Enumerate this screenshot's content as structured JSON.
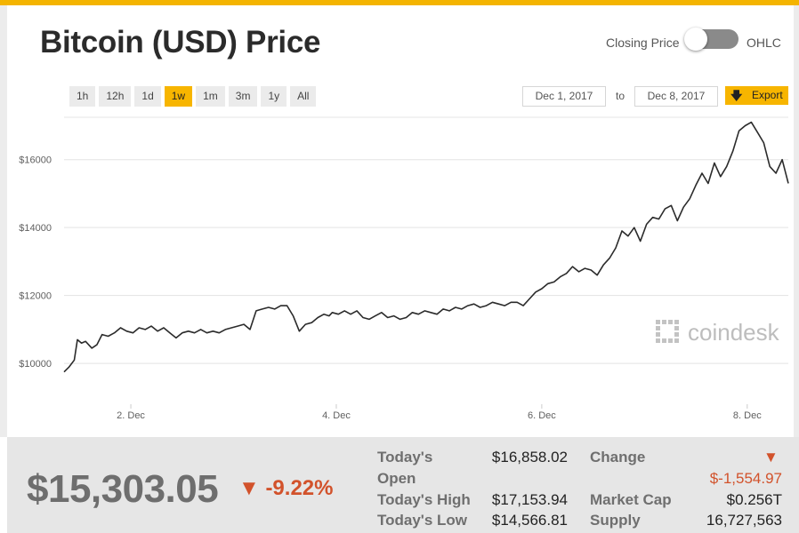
{
  "title": "Bitcoin (USD) Price",
  "toggle": {
    "left_label": "Closing Price",
    "right_label": "OHLC"
  },
  "ranges": [
    {
      "label": "1h",
      "active": false
    },
    {
      "label": "12h",
      "active": false
    },
    {
      "label": "1d",
      "active": false
    },
    {
      "label": "1w",
      "active": true
    },
    {
      "label": "1m",
      "active": false
    },
    {
      "label": "3m",
      "active": false
    },
    {
      "label": "1y",
      "active": false
    },
    {
      "label": "All",
      "active": false
    }
  ],
  "date_range": {
    "from": "Dec 1, 2017",
    "to_label": "to",
    "to": "Dec 8, 2017"
  },
  "export_label": "Export",
  "watermark": "coindesk",
  "colors": {
    "accent": "#f7b500",
    "negative": "#d2522b",
    "line": "#2b2b2b"
  },
  "chart_data": {
    "type": "line",
    "title": "Bitcoin (USD) Price",
    "xlabel": "",
    "ylabel": "",
    "x_ticks": [
      {
        "label": "2. Dec",
        "day": 2
      },
      {
        "label": "4. Dec",
        "day": 4
      },
      {
        "label": "6. Dec",
        "day": 6
      },
      {
        "label": "8. Dec",
        "day": 8
      }
    ],
    "y_ticks": [
      {
        "label": "$10000",
        "value": 10000
      },
      {
        "label": "$12000",
        "value": 12000
      },
      {
        "label": "$14000",
        "value": 14000
      },
      {
        "label": "$16000",
        "value": 16000
      }
    ],
    "xlim": [
      1.35,
      8.4
    ],
    "ylim": [
      8800,
      17300
    ],
    "grid": true,
    "series": [
      {
        "x": [
          1.35,
          1.4,
          1.45,
          1.48,
          1.52,
          1.56,
          1.62,
          1.67,
          1.72,
          1.78,
          1.84,
          1.9,
          1.96,
          2.02,
          2.08,
          2.14,
          2.2,
          2.26,
          2.32,
          2.38,
          2.44,
          2.5,
          2.56,
          2.62,
          2.68,
          2.74,
          2.8,
          2.86,
          2.92,
          2.98,
          3.04,
          3.1,
          3.16,
          3.22,
          3.28,
          3.34,
          3.4,
          3.46,
          3.52,
          3.58,
          3.64,
          3.7,
          3.76,
          3.82,
          3.88,
          3.93,
          3.96,
          4.02,
          4.08,
          4.14,
          4.2,
          4.26,
          4.32,
          4.38,
          4.44,
          4.5,
          4.56,
          4.62,
          4.68,
          4.74,
          4.8,
          4.86,
          4.92,
          4.98,
          5.04,
          5.1,
          5.16,
          5.22,
          5.28,
          5.34,
          5.4,
          5.46,
          5.52,
          5.58,
          5.64,
          5.7,
          5.76,
          5.82,
          5.88,
          5.94,
          6.0,
          6.06,
          6.12,
          6.18,
          6.24,
          6.3,
          6.36,
          6.42,
          6.48,
          6.54,
          6.6,
          6.66,
          6.72,
          6.78,
          6.84,
          6.9,
          6.96,
          7.02,
          7.08,
          7.14,
          7.2,
          7.26,
          7.32,
          7.38,
          7.44,
          7.5,
          7.56,
          7.62,
          7.68,
          7.74,
          7.8,
          7.86,
          7.92,
          7.98,
          8.04,
          8.1,
          8.16,
          8.22,
          8.28,
          8.34,
          8.4
        ],
        "values": [
          9750,
          9900,
          10100,
          10700,
          10600,
          10650,
          10450,
          10550,
          10850,
          10800,
          10900,
          11050,
          10950,
          10900,
          11050,
          11000,
          11100,
          10950,
          11050,
          10900,
          10750,
          10900,
          10950,
          10900,
          11000,
          10900,
          10950,
          10900,
          11000,
          11050,
          11100,
          11150,
          11000,
          11550,
          11600,
          11650,
          11600,
          11700,
          11700,
          11400,
          10950,
          11150,
          11200,
          11350,
          11450,
          11400,
          11500,
          11450,
          11550,
          11450,
          11550,
          11350,
          11300,
          11400,
          11500,
          11350,
          11400,
          11300,
          11350,
          11500,
          11450,
          11550,
          11500,
          11450,
          11600,
          11550,
          11650,
          11600,
          11700,
          11750,
          11650,
          11700,
          11800,
          11750,
          11700,
          11800,
          11800,
          11700,
          11900,
          12100,
          12200,
          12350,
          12400,
          12550,
          12650,
          12850,
          12700,
          12800,
          12750,
          12600,
          12900,
          13100,
          13400,
          13900,
          13750,
          14000,
          13600,
          14100,
          14300,
          14250,
          14550,
          14650,
          14200,
          14600,
          14850,
          15250,
          15600,
          15300,
          15900,
          15500,
          15800,
          16250,
          16850,
          17000,
          17100,
          16800,
          16500,
          15800,
          15600,
          16000,
          15303
        ]
      }
    ]
  },
  "stats": {
    "price": "$15,303.05",
    "change_pct": "-9.22%",
    "open_label_a": "Today's",
    "open_label_b": "Open",
    "open_value": "$16,858.02",
    "high_label": "Today's High",
    "high_value": "$17,153.94",
    "low_label": "Today's Low",
    "low_value": "$14,566.81",
    "change_label": "Change",
    "change_value": "$-1,554.97",
    "mcap_label": "Market Cap",
    "mcap_value": "$0.256T",
    "supply_label": "Supply",
    "supply_value": "16,727,563"
  }
}
